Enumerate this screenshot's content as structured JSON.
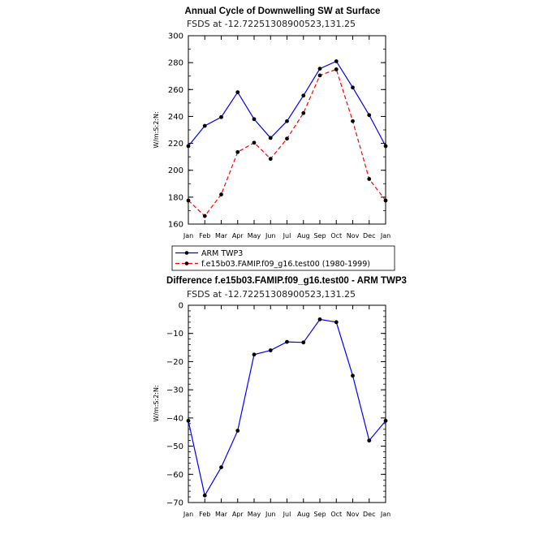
{
  "chart_data": [
    {
      "type": "line",
      "title": "Annual Cycle of Downwelling SW at Surface",
      "subtitle": "FSDS at -12.72251308900523,131.25",
      "xlabel": "",
      "ylabel": "W/m:S:2:N:",
      "categories": [
        "Jan",
        "Feb",
        "Mar",
        "Apr",
        "May",
        "Jun",
        "Jul",
        "Aug",
        "Sep",
        "Oct",
        "Nov",
        "Dec",
        "Jan"
      ],
      "ylim": [
        160,
        300
      ],
      "yticks": [
        160,
        180,
        200,
        220,
        240,
        260,
        280,
        300
      ],
      "series": [
        {
          "name": "ARM TWP3",
          "color": "#0000ff",
          "dash": "solid",
          "values": [
            218,
            233,
            239.5,
            258,
            238,
            224,
            236.5,
            255.5,
            275.5,
            281,
            261.5,
            241,
            218
          ]
        },
        {
          "name": "f.e15b03.FAMIP.f09_g16.test00 (1980-1999)",
          "color": "#ff0000",
          "dash": "dashed",
          "values": [
            177.5,
            166,
            182,
            213.5,
            220.5,
            208.5,
            223.5,
            242.5,
            270.5,
            275,
            236.5,
            193.5,
            177.5
          ]
        }
      ]
    },
    {
      "type": "line",
      "title": "Difference f.e15b03.FAMIP.f09_g16.test00 - ARM TWP3",
      "subtitle": "FSDS at -12.72251308900523,131.25",
      "xlabel": "",
      "ylabel": "W/m:S:2:N:",
      "categories": [
        "Jan",
        "Feb",
        "Mar",
        "Apr",
        "May",
        "Jun",
        "Jul",
        "Aug",
        "Sep",
        "Oct",
        "Nov",
        "Dec",
        "Jan"
      ],
      "ylim": [
        -70,
        0
      ],
      "yticks": [
        -70,
        -60,
        -50,
        -40,
        -30,
        -20,
        -10,
        0
      ],
      "series": [
        {
          "name": "Difference",
          "color": "#0000ff",
          "dash": "solid",
          "values": [
            -41,
            -67.5,
            -57.5,
            -44.5,
            -17.5,
            -16,
            -13,
            -13.2,
            -5,
            -6,
            -25,
            -48,
            -41
          ]
        }
      ]
    }
  ]
}
